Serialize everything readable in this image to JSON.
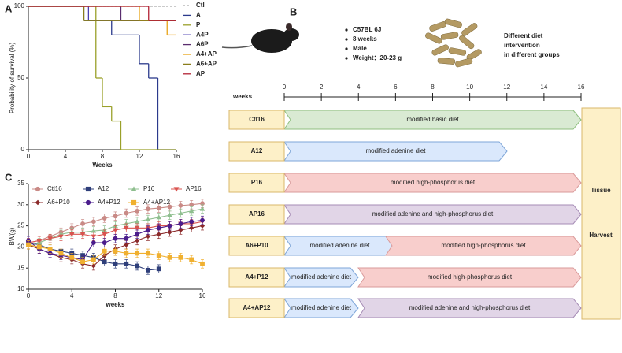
{
  "panel_labels": [
    "A",
    "B",
    "C"
  ],
  "chart_data": [
    {
      "type": "survival",
      "ylabel": "Probability of survival (%)",
      "xlabel": "Weeks",
      "xlim": [
        0,
        16
      ],
      "xticks": [
        0,
        4,
        8,
        12,
        16
      ],
      "ylim": [
        0,
        100
      ],
      "yticks": [
        0,
        50,
        100
      ],
      "series": [
        {
          "name": "Ctl",
          "color": "#aaaaaa",
          "dash": true,
          "x": [
            0,
            16
          ],
          "values": [
            100,
            100
          ]
        },
        {
          "name": "A",
          "color": "#2b3a8c",
          "x": [
            0,
            6,
            9,
            12,
            13,
            14,
            16
          ],
          "values": [
            100,
            90,
            80,
            60,
            50,
            0,
            0
          ]
        },
        {
          "name": "P",
          "color": "#9aa02a",
          "x": [
            0,
            7.3,
            8,
            9,
            10,
            16
          ],
          "values": [
            100,
            50,
            30,
            20,
            0,
            0
          ]
        },
        {
          "name": "A4P",
          "color": "#4b3fb0",
          "x": [
            0,
            6.5,
            16
          ],
          "values": [
            100,
            90,
            90
          ]
        },
        {
          "name": "A6P",
          "color": "#5a2d6e",
          "x": [
            0,
            10,
            16
          ],
          "values": [
            100,
            90,
            90
          ]
        },
        {
          "name": "A4+AP",
          "color": "#e8a317",
          "x": [
            0,
            12,
            15,
            16
          ],
          "values": [
            100,
            90,
            80,
            80
          ]
        },
        {
          "name": "A6+AP",
          "color": "#8a7d1a",
          "x": [
            0,
            6,
            16
          ],
          "values": [
            100,
            90,
            90
          ]
        },
        {
          "name": "AP",
          "color": "#b22234",
          "x": [
            0,
            13,
            16
          ],
          "values": [
            100,
            90,
            90
          ]
        }
      ]
    },
    {
      "type": "line",
      "ylabel": "BW(g)",
      "xlabel": "weeks",
      "xlim": [
        0,
        16
      ],
      "xticks": [
        0,
        4,
        8,
        12,
        16
      ],
      "ylim": [
        10,
        35
      ],
      "yticks": [
        10,
        15,
        20,
        25,
        30,
        35
      ],
      "x": [
        0,
        1,
        2,
        3,
        4,
        5,
        6,
        7,
        8,
        9,
        10,
        11,
        12,
        13,
        14,
        15,
        16
      ],
      "series": [
        {
          "name": "Ctl16",
          "color": "#c98a86",
          "marker": "circle",
          "error": 1,
          "values": [
            21,
            21.5,
            22.5,
            23.5,
            24.5,
            25.5,
            26,
            26.8,
            27.3,
            28,
            28.5,
            29,
            29.2,
            29.5,
            29.8,
            30,
            30.3
          ]
        },
        {
          "name": "A12",
          "color": "#2f3f7a",
          "marker": "square",
          "error": 1,
          "values": [
            21,
            20.5,
            19.5,
            19,
            18.5,
            18,
            17.5,
            16.5,
            16,
            16,
            15.5,
            14.5,
            14.8,
            null,
            null,
            null,
            null
          ]
        },
        {
          "name": "P16",
          "color": "#8fbf8f",
          "marker": "triangle",
          "error": 1,
          "values": [
            20.5,
            21,
            22,
            23,
            23.5,
            23.5,
            23.8,
            24,
            25,
            25.5,
            26,
            26.5,
            27,
            27.5,
            28,
            28.5,
            29
          ]
        },
        {
          "name": "AP16",
          "color": "#d9534f",
          "marker": "triangle-down",
          "error": 1,
          "values": [
            21,
            21.5,
            22,
            22.5,
            23,
            23,
            22.5,
            23,
            24,
            24.5,
            24.5,
            24.5,
            25,
            25,
            25.5,
            25.5,
            26
          ]
        },
        {
          "name": "A6+P10",
          "color": "#8b2a2a",
          "marker": "diamond",
          "error": 1,
          "values": [
            20.5,
            19.5,
            18.5,
            17.5,
            17,
            16,
            15.5,
            18,
            19.5,
            20.5,
            21.5,
            22.5,
            23,
            23.5,
            24,
            24.5,
            25
          ]
        },
        {
          "name": "A4+P12",
          "color": "#4b1d8c",
          "marker": "circle",
          "error": 1,
          "values": [
            21.5,
            19.5,
            18.5,
            18,
            17.5,
            17,
            21,
            21,
            22,
            22,
            23,
            24,
            24.5,
            25,
            25.5,
            26,
            26.3
          ]
        },
        {
          "name": "A4+AP12",
          "color": "#f0b030",
          "marker": "square",
          "error": 1,
          "values": [
            20.5,
            20,
            19.5,
            18.5,
            17.5,
            16.5,
            17,
            19,
            19,
            18.5,
            18.5,
            18.5,
            18,
            17.5,
            17.5,
            17,
            16
          ]
        }
      ]
    }
  ],
  "diagram": {
    "mouse_info": [
      "C57BL 6J",
      "8 weeks",
      "Male",
      "Weight：20-23 g"
    ],
    "diet_note": [
      "Different diet",
      "intervention",
      "in different groups"
    ],
    "timeline_label": "weeks",
    "timeline_ticks": [
      0,
      2,
      4,
      6,
      8,
      10,
      12,
      14,
      16
    ],
    "groups": [
      {
        "label": "Ctl16",
        "segments": [
          {
            "text": "modified basic diet",
            "color": "#d9ead3"
          }
        ]
      },
      {
        "label": "A12",
        "segments": [
          {
            "text": "modified adenine diet",
            "color": "#dae8fc"
          }
        ]
      },
      {
        "label": "P16",
        "segments": [
          {
            "text": "modified high-phosphorus diet",
            "color": "#f8cecc"
          }
        ]
      },
      {
        "label": "AP16",
        "segments": [
          {
            "text": "modified adenine and high-phosphorus diet",
            "color": "#e1d5e7"
          }
        ]
      },
      {
        "label": "A6+P10",
        "segments": [
          {
            "text": "modified adenine diet",
            "color": "#dae8fc"
          },
          {
            "text": "modified high-phosphorus diet",
            "color": "#f8cecc"
          }
        ]
      },
      {
        "label": "A4+P12",
        "segments": [
          {
            "text": "modified adenine diet",
            "color": "#dae8fc"
          },
          {
            "text": "modified high-phosphorus diet",
            "color": "#f8cecc"
          }
        ]
      },
      {
        "label": "A4+AP12",
        "segments": [
          {
            "text": "modified adenine diet",
            "color": "#dae8fc"
          },
          {
            "text": "modified adenine and high-phosphorus diet",
            "color": "#e1d5e7"
          }
        ]
      }
    ],
    "harvest": [
      "Tissue",
      "Harvest"
    ]
  }
}
